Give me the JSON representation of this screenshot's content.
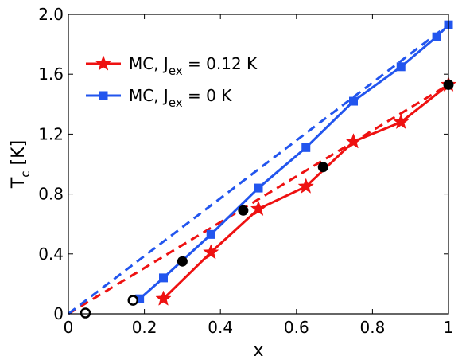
{
  "chart_data": {
    "type": "line",
    "xlabel": "x",
    "ylabel": {
      "main": "T",
      "sub": "c",
      "unit": " [K]"
    },
    "xlim": [
      0,
      1
    ],
    "ylim": [
      0,
      2.0
    ],
    "x_ticks": [
      "0",
      "0.2",
      "0.4",
      "0.6",
      "0.8",
      "1"
    ],
    "y_ticks": [
      "0",
      "0.4",
      "0.8",
      "1.2",
      "1.6",
      "2.0"
    ],
    "grid": false,
    "legend_position": "top-left",
    "series": [
      {
        "name": {
          "pre": "MC, J",
          "sub": "ex",
          "post": " = 0.12 K"
        },
        "color": "#ee1111",
        "marker": "star",
        "line": "solid",
        "x": [
          0.25,
          0.375,
          0.5,
          0.625,
          0.75,
          0.875,
          1.0
        ],
        "y": [
          0.1,
          0.41,
          0.7,
          0.85,
          1.15,
          1.28,
          1.53
        ]
      },
      {
        "name": {
          "pre": "MC, J",
          "sub": "ex",
          "post": " = 0 K"
        },
        "color": "#2255ee",
        "marker": "square",
        "line": "solid",
        "x": [
          0.1875,
          0.25,
          0.375,
          0.5,
          0.625,
          0.75,
          0.875,
          0.9688,
          1.0
        ],
        "y": [
          0.1,
          0.24,
          0.53,
          0.84,
          1.11,
          1.42,
          1.65,
          1.85,
          1.93
        ]
      }
    ],
    "reference_lines": [
      {
        "color": "#ee1111",
        "style": "dashed",
        "x": [
          0,
          1.0
        ],
        "y": [
          0,
          1.53
        ]
      },
      {
        "color": "#2255ee",
        "style": "dashed",
        "x": [
          0,
          1.0
        ],
        "y": [
          0,
          1.93
        ]
      }
    ],
    "filled_points": {
      "color": "#000000",
      "x": [
        0.3,
        0.46,
        0.67,
        1.0
      ],
      "y": [
        0.35,
        0.69,
        0.98,
        1.53
      ]
    },
    "open_points": {
      "color": "#000000",
      "x": [
        0.045,
        0.17
      ],
      "y": [
        0.005,
        0.09
      ]
    }
  }
}
